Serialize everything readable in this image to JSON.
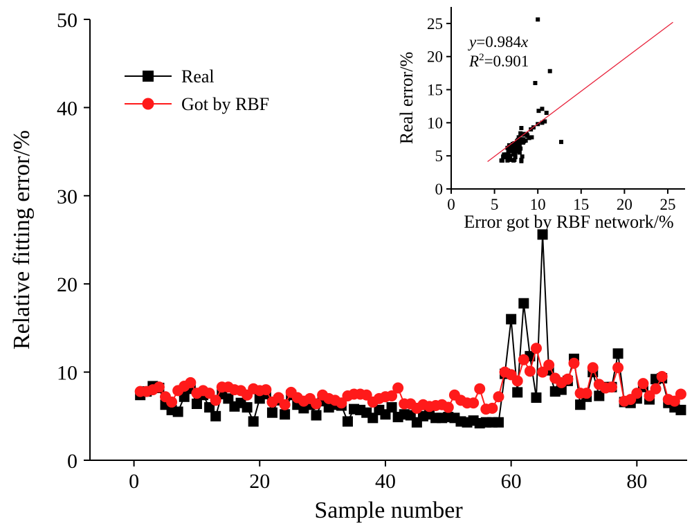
{
  "chart_data": [
    {
      "type": "line",
      "xlabel": "Sample number",
      "ylabel": "Relative fitting error/%",
      "xlim": [
        -7,
        88
      ],
      "ylim": [
        0,
        50
      ],
      "xticks": [
        0,
        20,
        40,
        60,
        80
      ],
      "yticks": [
        0,
        10,
        20,
        30,
        40,
        50
      ],
      "legend_position": "upper-left",
      "series": [
        {
          "name": "Real",
          "color": "#000000",
          "marker": "square",
          "x": [
            1,
            2,
            3,
            4,
            5,
            6,
            7,
            8,
            9,
            10,
            11,
            12,
            13,
            14,
            15,
            16,
            17,
            18,
            19,
            20,
            21,
            22,
            23,
            24,
            25,
            26,
            27,
            28,
            29,
            30,
            31,
            32,
            33,
            34,
            35,
            36,
            37,
            38,
            39,
            40,
            41,
            42,
            43,
            44,
            45,
            46,
            47,
            48,
            49,
            50,
            51,
            52,
            53,
            54,
            55,
            56,
            57,
            58,
            59,
            60,
            61,
            62,
            63,
            64,
            65,
            66,
            67,
            68,
            69,
            70,
            71,
            72,
            73,
            74,
            75,
            76,
            77,
            78,
            79,
            80,
            81,
            82,
            83,
            84,
            85,
            86,
            87
          ],
          "values": [
            7.4,
            7.8,
            8.4,
            8.2,
            6.3,
            5.7,
            5.5,
            7.2,
            8.1,
            6.4,
            7.4,
            6.0,
            5.0,
            7.5,
            7.0,
            6.1,
            6.5,
            6.0,
            4.4,
            7.0,
            7.5,
            5.4,
            6.8,
            5.2,
            7.4,
            6.3,
            5.9,
            6.3,
            5.1,
            6.7,
            6.0,
            6.3,
            6.2,
            4.4,
            5.8,
            5.7,
            5.4,
            4.8,
            5.7,
            5.2,
            6.0,
            4.9,
            5.2,
            5.1,
            4.3,
            5.0,
            5.2,
            4.8,
            4.8,
            4.9,
            4.8,
            4.4,
            4.3,
            4.5,
            4.2,
            4.3,
            4.3,
            4.3,
            9.8,
            16.0,
            7.7,
            17.8,
            11.8,
            7.1,
            25.6,
            10.2,
            7.8,
            8.0,
            9.0,
            11.5,
            6.3,
            7.2,
            10.0,
            7.3,
            8.3,
            8.3,
            12.1,
            6.6,
            6.5,
            7.0,
            8.3,
            6.9,
            9.2,
            9.3,
            6.5,
            6.0,
            5.7
          ]
        },
        {
          "name": "Got by RBF",
          "color": "#ff1a1a",
          "marker": "circle",
          "x": [
            1,
            2,
            3,
            4,
            5,
            6,
            7,
            8,
            9,
            10,
            11,
            12,
            13,
            14,
            15,
            16,
            17,
            18,
            19,
            20,
            21,
            22,
            23,
            24,
            25,
            26,
            27,
            28,
            29,
            30,
            31,
            32,
            33,
            34,
            35,
            36,
            37,
            38,
            39,
            40,
            41,
            42,
            43,
            44,
            45,
            46,
            47,
            48,
            49,
            50,
            51,
            52,
            53,
            54,
            55,
            56,
            57,
            58,
            59,
            60,
            61,
            62,
            63,
            64,
            65,
            66,
            67,
            68,
            69,
            70,
            71,
            72,
            73,
            74,
            75,
            76,
            77,
            78,
            79,
            80,
            81,
            82,
            83,
            84,
            85,
            86,
            87
          ],
          "values": [
            7.8,
            7.8,
            8.0,
            8.3,
            7.2,
            6.6,
            7.9,
            8.4,
            8.8,
            7.6,
            7.9,
            7.6,
            6.8,
            8.3,
            8.3,
            8.0,
            7.9,
            7.4,
            8.1,
            7.9,
            8.0,
            6.6,
            7.1,
            6.3,
            7.7,
            7.1,
            6.7,
            7.0,
            6.4,
            7.4,
            7.0,
            6.8,
            6.5,
            7.3,
            7.5,
            7.5,
            7.4,
            6.6,
            7.0,
            7.2,
            7.3,
            8.2,
            6.4,
            6.4,
            5.9,
            6.3,
            6.1,
            6.2,
            6.3,
            6.0,
            7.4,
            6.8,
            6.5,
            6.5,
            8.1,
            5.8,
            5.9,
            7.2,
            10.0,
            9.7,
            9.0,
            11.4,
            10.1,
            12.7,
            10.0,
            10.8,
            9.3,
            8.8,
            9.2,
            11.0,
            7.6,
            7.6,
            10.5,
            8.6,
            8.2,
            8.3,
            10.5,
            6.7,
            6.9,
            7.6,
            8.7,
            7.3,
            8.1,
            9.5,
            6.9,
            6.7,
            7.5
          ]
        }
      ]
    },
    {
      "type": "scatter",
      "xlabel": "Error got by RBF network/%",
      "ylabel": "Real error/%",
      "xlim": [
        0,
        27
      ],
      "ylim": [
        0,
        27.5
      ],
      "xticks": [
        0,
        5,
        10,
        15,
        20,
        25
      ],
      "yticks": [
        0,
        5,
        10,
        15,
        20,
        25
      ],
      "fit_line": {
        "slope": 0.984,
        "x_range": [
          4.2,
          25.6
        ],
        "color": "#e8213a"
      },
      "annotation": {
        "eq_lhs": "y",
        "eq_rhs": "=0.984",
        "eq_var": "x",
        "r2_lhs": "R",
        "r2_exp": "2",
        "r2_rhs": "=0.901"
      },
      "points": [
        [
          7.8,
          7.4
        ],
        [
          7.8,
          7.8
        ],
        [
          8.0,
          8.4
        ],
        [
          8.3,
          8.2
        ],
        [
          7.2,
          6.3
        ],
        [
          6.6,
          5.7
        ],
        [
          7.9,
          5.5
        ],
        [
          8.4,
          7.2
        ],
        [
          8.8,
          8.1
        ],
        [
          7.6,
          6.4
        ],
        [
          7.9,
          7.4
        ],
        [
          7.6,
          6.0
        ],
        [
          6.8,
          5.0
        ],
        [
          8.3,
          7.5
        ],
        [
          8.3,
          7.0
        ],
        [
          8.0,
          6.1
        ],
        [
          7.9,
          6.5
        ],
        [
          7.4,
          6.0
        ],
        [
          8.1,
          4.4
        ],
        [
          7.9,
          7.0
        ],
        [
          8.0,
          7.5
        ],
        [
          6.6,
          5.4
        ],
        [
          7.1,
          6.8
        ],
        [
          6.3,
          5.2
        ],
        [
          7.7,
          7.4
        ],
        [
          7.1,
          6.3
        ],
        [
          6.7,
          5.9
        ],
        [
          7.0,
          6.3
        ],
        [
          6.4,
          5.1
        ],
        [
          7.4,
          6.7
        ],
        [
          7.0,
          6.0
        ],
        [
          6.8,
          6.3
        ],
        [
          6.5,
          6.2
        ],
        [
          7.3,
          4.4
        ],
        [
          7.5,
          5.8
        ],
        [
          7.5,
          5.7
        ],
        [
          7.4,
          5.4
        ],
        [
          6.6,
          4.8
        ],
        [
          7.0,
          5.7
        ],
        [
          7.2,
          5.2
        ],
        [
          7.3,
          6.0
        ],
        [
          8.2,
          4.9
        ],
        [
          6.4,
          5.2
        ],
        [
          6.4,
          5.1
        ],
        [
          5.9,
          4.3
        ],
        [
          6.3,
          5.0
        ],
        [
          6.1,
          5.2
        ],
        [
          6.2,
          4.8
        ],
        [
          6.3,
          4.8
        ],
        [
          6.0,
          4.9
        ],
        [
          7.4,
          4.8
        ],
        [
          6.8,
          4.4
        ],
        [
          6.5,
          4.3
        ],
        [
          6.5,
          4.5
        ],
        [
          8.1,
          4.2
        ],
        [
          5.8,
          4.3
        ],
        [
          5.9,
          4.3
        ],
        [
          7.2,
          4.3
        ],
        [
          10.0,
          9.8
        ],
        [
          9.7,
          16.0
        ],
        [
          9.0,
          7.7
        ],
        [
          11.4,
          17.8
        ],
        [
          10.1,
          11.8
        ],
        [
          12.7,
          7.1
        ],
        [
          10.0,
          25.6
        ],
        [
          10.8,
          10.2
        ],
        [
          9.3,
          7.8
        ],
        [
          8.8,
          8.0
        ],
        [
          9.2,
          9.0
        ],
        [
          11.0,
          11.5
        ],
        [
          7.6,
          6.3
        ],
        [
          7.6,
          7.2
        ],
        [
          10.5,
          10.0
        ],
        [
          8.6,
          7.3
        ],
        [
          8.2,
          8.3
        ],
        [
          8.3,
          8.3
        ],
        [
          10.5,
          12.1
        ],
        [
          6.7,
          6.6
        ],
        [
          6.9,
          6.5
        ],
        [
          7.6,
          7.0
        ],
        [
          8.7,
          8.3
        ],
        [
          7.3,
          6.9
        ],
        [
          8.1,
          9.2
        ],
        [
          9.5,
          9.3
        ],
        [
          6.9,
          6.5
        ],
        [
          6.7,
          6.0
        ],
        [
          7.5,
          5.7
        ]
      ]
    }
  ]
}
